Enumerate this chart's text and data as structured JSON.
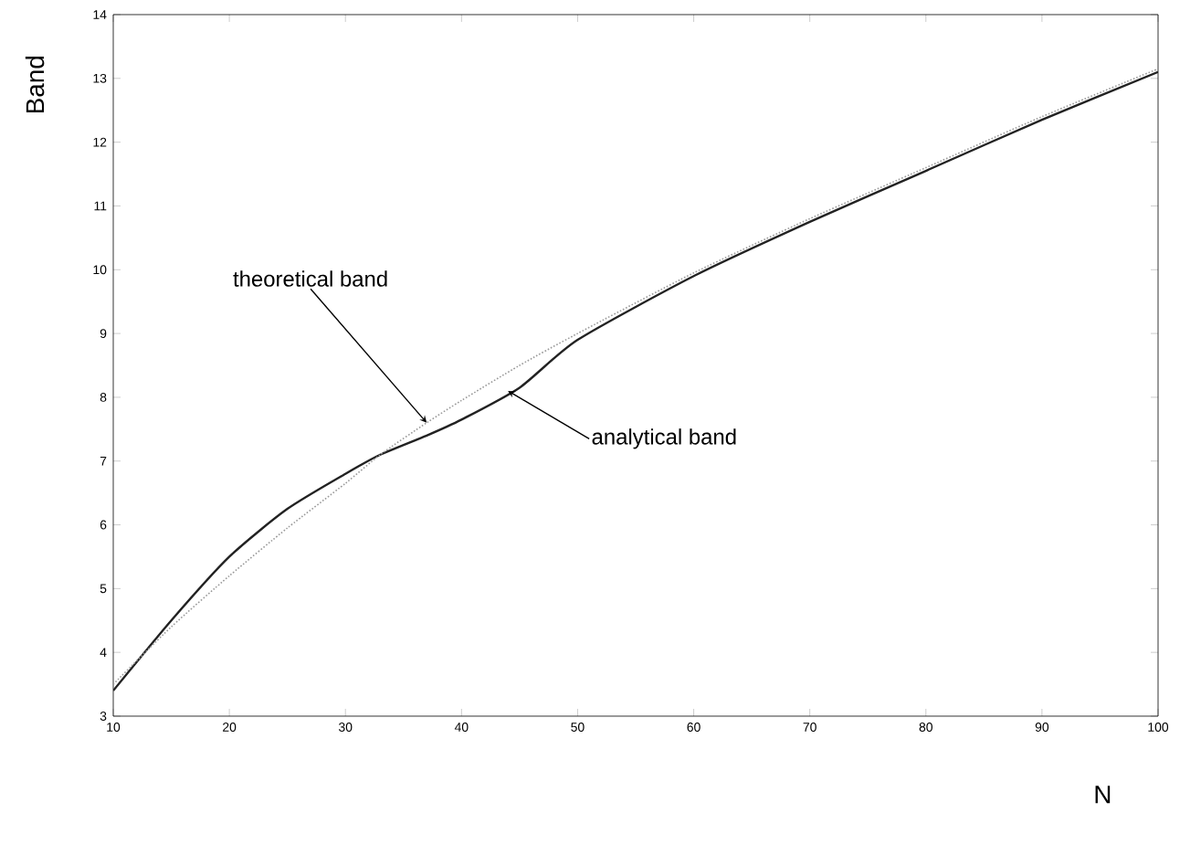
{
  "chart_data": {
    "type": "line",
    "xlabel": "N",
    "ylabel": "Band",
    "x": [
      10,
      15,
      20,
      25,
      30,
      33,
      37,
      40,
      45,
      50,
      60,
      70,
      80,
      90,
      100
    ],
    "series": [
      {
        "color": "#222222",
        "line_style": "solid",
        "values": [
          3.4,
          4.5,
          5.5,
          6.25,
          6.8,
          7.1,
          7.4,
          7.65,
          8.15,
          8.9,
          9.9,
          10.75,
          11.55,
          12.35,
          13.1
        ]
      },
      {
        "color": "#999999",
        "line_style": "dotted",
        "values": [
          3.5,
          4.4,
          5.2,
          5.95,
          6.65,
          7.1,
          7.6,
          7.95,
          8.5,
          9.0,
          9.95,
          10.8,
          11.6,
          12.4,
          13.15
        ]
      }
    ],
    "xlim": [
      10,
      100
    ],
    "ylim": [
      3,
      14
    ],
    "xticks": [
      10,
      20,
      30,
      40,
      50,
      60,
      70,
      80,
      90,
      100
    ],
    "yticks": [
      3,
      4,
      5,
      6,
      7,
      8,
      9,
      10,
      11,
      12,
      13,
      14
    ],
    "grid": false,
    "marker": "none",
    "annotations": [
      {
        "text": "theoretical band",
        "x": 37,
        "y": 7.6
      },
      {
        "text": "analytical band",
        "x": 44,
        "y": 8.1
      }
    ]
  }
}
